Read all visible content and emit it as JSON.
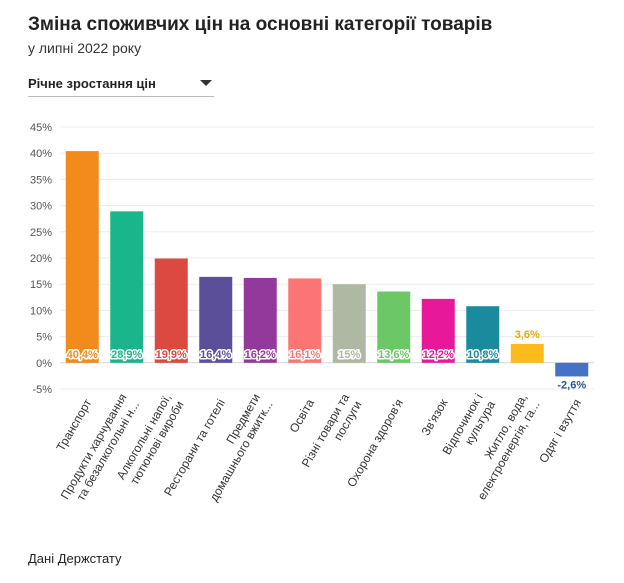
{
  "header": {
    "title": "Зміна споживчих цін на основні категорії товарів",
    "subtitle": "у липні 2022 року"
  },
  "dropdown": {
    "selected": "Річне зростання цін"
  },
  "footer": {
    "source": "Дані Держстату"
  },
  "chart_data": {
    "type": "bar",
    "title": "Зміна споживчих цін на основні категорії товарів",
    "ylim": [
      -5,
      45
    ],
    "yticks": [
      -5,
      0,
      5,
      10,
      15,
      20,
      25,
      30,
      35,
      40,
      45
    ],
    "ytick_labels": [
      "-5%",
      "0%",
      "5%",
      "10%",
      "15%",
      "20%",
      "25%",
      "30%",
      "35%",
      "40%",
      "45%"
    ],
    "grid": true,
    "categories": [
      [
        "Транспорт"
      ],
      [
        "Продукти харчування",
        "та безалкогольні н..."
      ],
      [
        "Алкогольні напої,",
        "тютюнові вироби"
      ],
      [
        "Ресторани та готелі"
      ],
      [
        "Предмети",
        "домашнього вжитк..."
      ],
      [
        "Освіта"
      ],
      [
        "Різні товари та",
        "послуги"
      ],
      [
        "Охорона здоров'я"
      ],
      [
        "Зв'язок"
      ],
      [
        "Відпочинок і",
        "культура"
      ],
      [
        "Житло, вода,",
        "електроенергія, га..."
      ],
      [
        "Одяг і взуття"
      ]
    ],
    "values": [
      40.4,
      28.9,
      19.9,
      16.4,
      16.2,
      16.1,
      15,
      13.6,
      12.2,
      10.8,
      3.6,
      -2.6
    ],
    "value_labels": [
      "40,4%",
      "28,9%",
      "19,9%",
      "16,4%",
      "16,2%",
      "16,1%",
      "15%",
      "13,6%",
      "12,2%",
      "10,8%",
      "3,6%",
      "-2,6%"
    ],
    "colors": [
      "#f28a1c",
      "#1ab58a",
      "#db4941",
      "#5c4f9a",
      "#93399b",
      "#fb7574",
      "#aeb8a2",
      "#6cc766",
      "#e8189a",
      "#1a8b9d",
      "#fcbb1b",
      "#4472c4"
    ],
    "label_colors": [
      "#f28a1c",
      "#1ab58a",
      "#db4941",
      "#5c4f9a",
      "#93399b",
      "#fb7574",
      "#aeb8a2",
      "#6cc766",
      "#e8189a",
      "#1a8b9d",
      "#e8a800",
      "#2f5597"
    ]
  }
}
